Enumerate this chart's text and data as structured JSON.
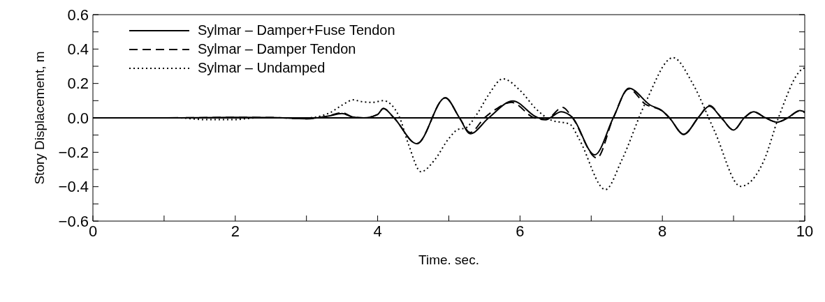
{
  "chart_data": {
    "type": "line",
    "xlabel": "Time. sec.",
    "ylabel": "Story Displacement, m",
    "xlim": [
      0,
      10
    ],
    "ylim": [
      -0.6,
      0.6
    ],
    "xticks": [
      0,
      {
        "value": 1,
        "label": null
      },
      2,
      {
        "value": 3,
        "label": null
      },
      4,
      {
        "value": 5,
        "label": null
      },
      6,
      {
        "value": 7,
        "label": null
      },
      8,
      {
        "value": 9,
        "label": null
      },
      10
    ],
    "yticks": [
      {
        "value": -0.6,
        "label": "−0.6"
      },
      {
        "value": -0.5,
        "label": null
      },
      {
        "value": -0.4,
        "label": "−0.4"
      },
      {
        "value": -0.3,
        "label": null
      },
      {
        "value": -0.2,
        "label": "−0.2"
      },
      {
        "value": -0.1,
        "label": null
      },
      {
        "value": 0,
        "label": "0.0"
      },
      {
        "value": 0.1,
        "label": null
      },
      {
        "value": 0.2,
        "label": "0.2"
      },
      {
        "value": 0.3,
        "label": null
      },
      {
        "value": 0.4,
        "label": "0.4"
      },
      {
        "value": 0.5,
        "label": null
      },
      {
        "value": 0.6,
        "label": "0.6"
      }
    ],
    "grid": false,
    "legend": "top left",
    "marker": "none",
    "ref_lines": [
      {
        "axis": "y",
        "value": 0,
        "line_style": "solid",
        "color": "#000000"
      }
    ],
    "series": [
      {
        "name": "Sylmar – Damper+Fuse Tendon",
        "color": "#000000",
        "line_style": "solid",
        "x": [
          0,
          1,
          2,
          2.5,
          3,
          3.3,
          3.5,
          3.65,
          3.8,
          4.0,
          4.08,
          4.23,
          4.55,
          4.95,
          5.15,
          5.3,
          5.56,
          5.9,
          6.23,
          6.36,
          6.58,
          6.73,
          7.05,
          7.31,
          7.53,
          7.83,
          8.0,
          8.1,
          8.3,
          8.51,
          8.66,
          8.83,
          9.0,
          9.15,
          9.28,
          9.45,
          9.61,
          9.76,
          9.93,
          10
        ],
        "values": [
          0,
          0,
          0.003,
          0.002,
          -0.005,
          0.01,
          0.025,
          0.005,
          0,
          0.02,
          0.055,
          0,
          -0.15,
          0.117,
          0,
          -0.092,
          0,
          0.098,
          0.005,
          -0.01,
          0.035,
          0.005,
          -0.215,
          0,
          0.172,
          0.074,
          0.04,
          0,
          -0.096,
          0.005,
          0.068,
          0,
          -0.071,
          0,
          0.035,
          0,
          -0.025,
          0,
          0.043,
          0.035
        ]
      },
      {
        "name": "Sylmar – Damper Tendon",
        "color": "#000000",
        "line_style": "dashed",
        "x": [
          0,
          1,
          2,
          2.5,
          3,
          3.3,
          3.5,
          3.65,
          3.8,
          4.0,
          4.08,
          4.23,
          4.55,
          4.95,
          5.15,
          5.3,
          5.5,
          5.66,
          5.88,
          6.2,
          6.36,
          6.6,
          6.73,
          7.08,
          7.31,
          7.53,
          7.76,
          8.0,
          8.1,
          8.3,
          8.51,
          8.66,
          8.83,
          9.0,
          9.15,
          9.28,
          9.45,
          9.61,
          9.76,
          9.93,
          10
        ],
        "values": [
          0,
          0,
          0.003,
          0.002,
          -0.005,
          0.01,
          0.03,
          0.005,
          0,
          0.02,
          0.055,
          0,
          -0.15,
          0.117,
          0,
          -0.085,
          0,
          0.05,
          0.09,
          0,
          -0.01,
          0.061,
          0.005,
          -0.233,
          0,
          0.168,
          0.08,
          0.04,
          0,
          -0.096,
          0.005,
          0.072,
          0,
          -0.071,
          0,
          0.035,
          0,
          -0.025,
          0,
          0.04,
          0.03
        ]
      },
      {
        "name": "Sylmar – Undamped",
        "color": "#000000",
        "line_style": "dotted",
        "x": [
          0,
          1.2,
          1.56,
          2.0,
          2.3,
          3.0,
          3.33,
          3.5,
          3.66,
          3.76,
          3.93,
          4.08,
          4.3,
          4.43,
          4.61,
          4.8,
          5.0,
          5.13,
          5.23,
          5.4,
          5.56,
          5.76,
          6.0,
          6.23,
          6.43,
          6.7,
          6.83,
          7.2,
          7.43,
          7.76,
          8.15,
          8.43,
          8.73,
          9.1,
          9.43,
          9.63,
          9.96,
          10
        ],
        "values": [
          0,
          0,
          -0.01,
          -0.01,
          0,
          0,
          0.03,
          0.074,
          0.105,
          0.095,
          0.09,
          0.1,
          0.01,
          -0.15,
          -0.313,
          -0.245,
          -0.12,
          -0.067,
          -0.06,
          0.025,
          0.135,
          0.227,
          0.16,
          0.05,
          -0.012,
          -0.037,
          -0.123,
          -0.417,
          -0.245,
          0.086,
          0.35,
          0.196,
          -0.074,
          -0.398,
          -0.245,
          0,
          0.282,
          0.29
        ]
      }
    ]
  }
}
